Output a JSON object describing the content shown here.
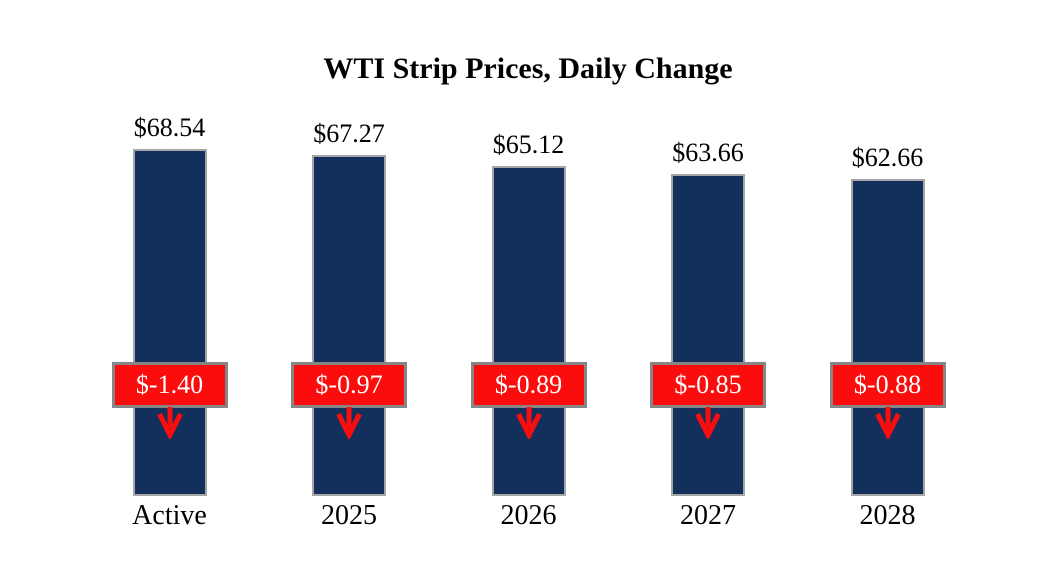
{
  "chart_data": {
    "type": "bar",
    "title": "WTI Strip Prices, Daily Change",
    "categories": [
      "Active",
      "2025",
      "2026",
      "2027",
      "2028"
    ],
    "series": [
      {
        "name": "Strip Price",
        "values": [
          68.54,
          67.27,
          65.12,
          63.66,
          62.66
        ]
      },
      {
        "name": "Daily Change",
        "values": [
          -1.4,
          -0.97,
          -0.89,
          -0.85,
          -0.88
        ]
      }
    ],
    "value_labels": [
      "$68.54",
      "$67.27",
      "$65.12",
      "$63.66",
      "$62.66"
    ],
    "change_labels": [
      "$-1.40",
      "$-0.97",
      "$-0.89",
      "$-0.85",
      "$-0.88"
    ],
    "ylim": [
      0,
      68.54
    ],
    "grid": false,
    "legend": "none",
    "colors": {
      "bar": "#12305b",
      "bar_border": "#a6a6a6",
      "badge": "#fb0d0d",
      "badge_border": "#868686",
      "badge_text": "#ffffff",
      "arrow": "#fb0d0d",
      "label_text": "#000000"
    }
  }
}
